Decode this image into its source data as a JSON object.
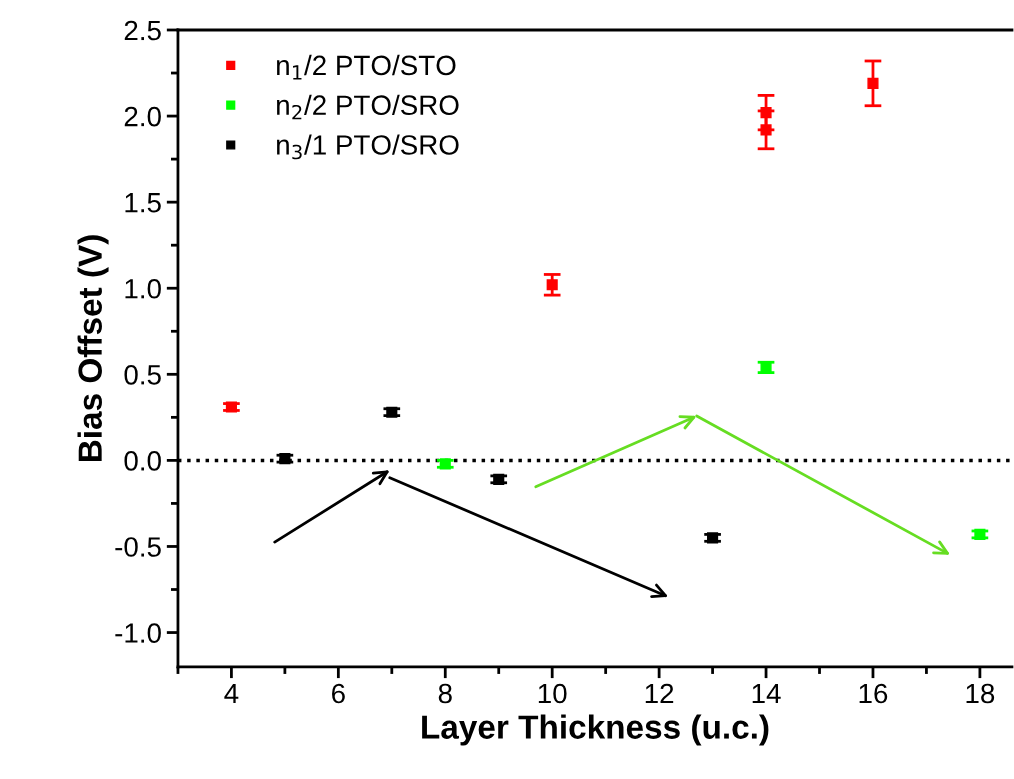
{
  "chart_data": {
    "type": "scatter",
    "xlabel": "Layer Thickness (u.c.)",
    "ylabel": "Bias Offset (V)",
    "xlim": [
      3,
      18.6
    ],
    "xticks": [
      4,
      6,
      8,
      10,
      12,
      14,
      16,
      18
    ],
    "ylim": [
      -1.2,
      2.5
    ],
    "yticks": [
      {
        "value": -1,
        "label": "-1.0"
      },
      -0.5,
      {
        "value": 0,
        "label": "0.0"
      },
      0.5,
      {
        "value": 1,
        "label": "1.0"
      },
      1.5,
      {
        "value": 2,
        "label": "2.0"
      },
      2.5
    ],
    "marker": "square",
    "legend": "top left",
    "grid": false,
    "ref_lines": [
      {
        "axis": "y",
        "value": 0,
        "color": "#000000",
        "line_style": "dotted"
      }
    ],
    "series": [
      {
        "name": "n$_{1}$/2 PTO/STO",
        "color": "#ff0000",
        "x": [
          4,
          10,
          14,
          14,
          16
        ],
        "values": [
          0.31,
          1.02,
          2.02,
          1.92,
          2.19
        ],
        "errors": [
          0.02,
          0.06,
          0.1,
          0.11,
          0.13
        ]
      },
      {
        "name": "n$_{2}$/2 PTO/SRO",
        "color": "#00ff00",
        "x": [
          8,
          14,
          18
        ],
        "values": [
          -0.02,
          0.54,
          -0.43
        ],
        "errors": [
          0.02,
          0.03,
          0.02
        ]
      },
      {
        "name": "n$_{3}$/1 PTO/SRO",
        "color": "#000000",
        "x": [
          5,
          7,
          9,
          13
        ],
        "values": [
          0.01,
          0.28,
          -0.11,
          -0.45
        ],
        "errors": [
          0.02,
          0.02,
          0.02,
          0.02
        ]
      }
    ]
  }
}
